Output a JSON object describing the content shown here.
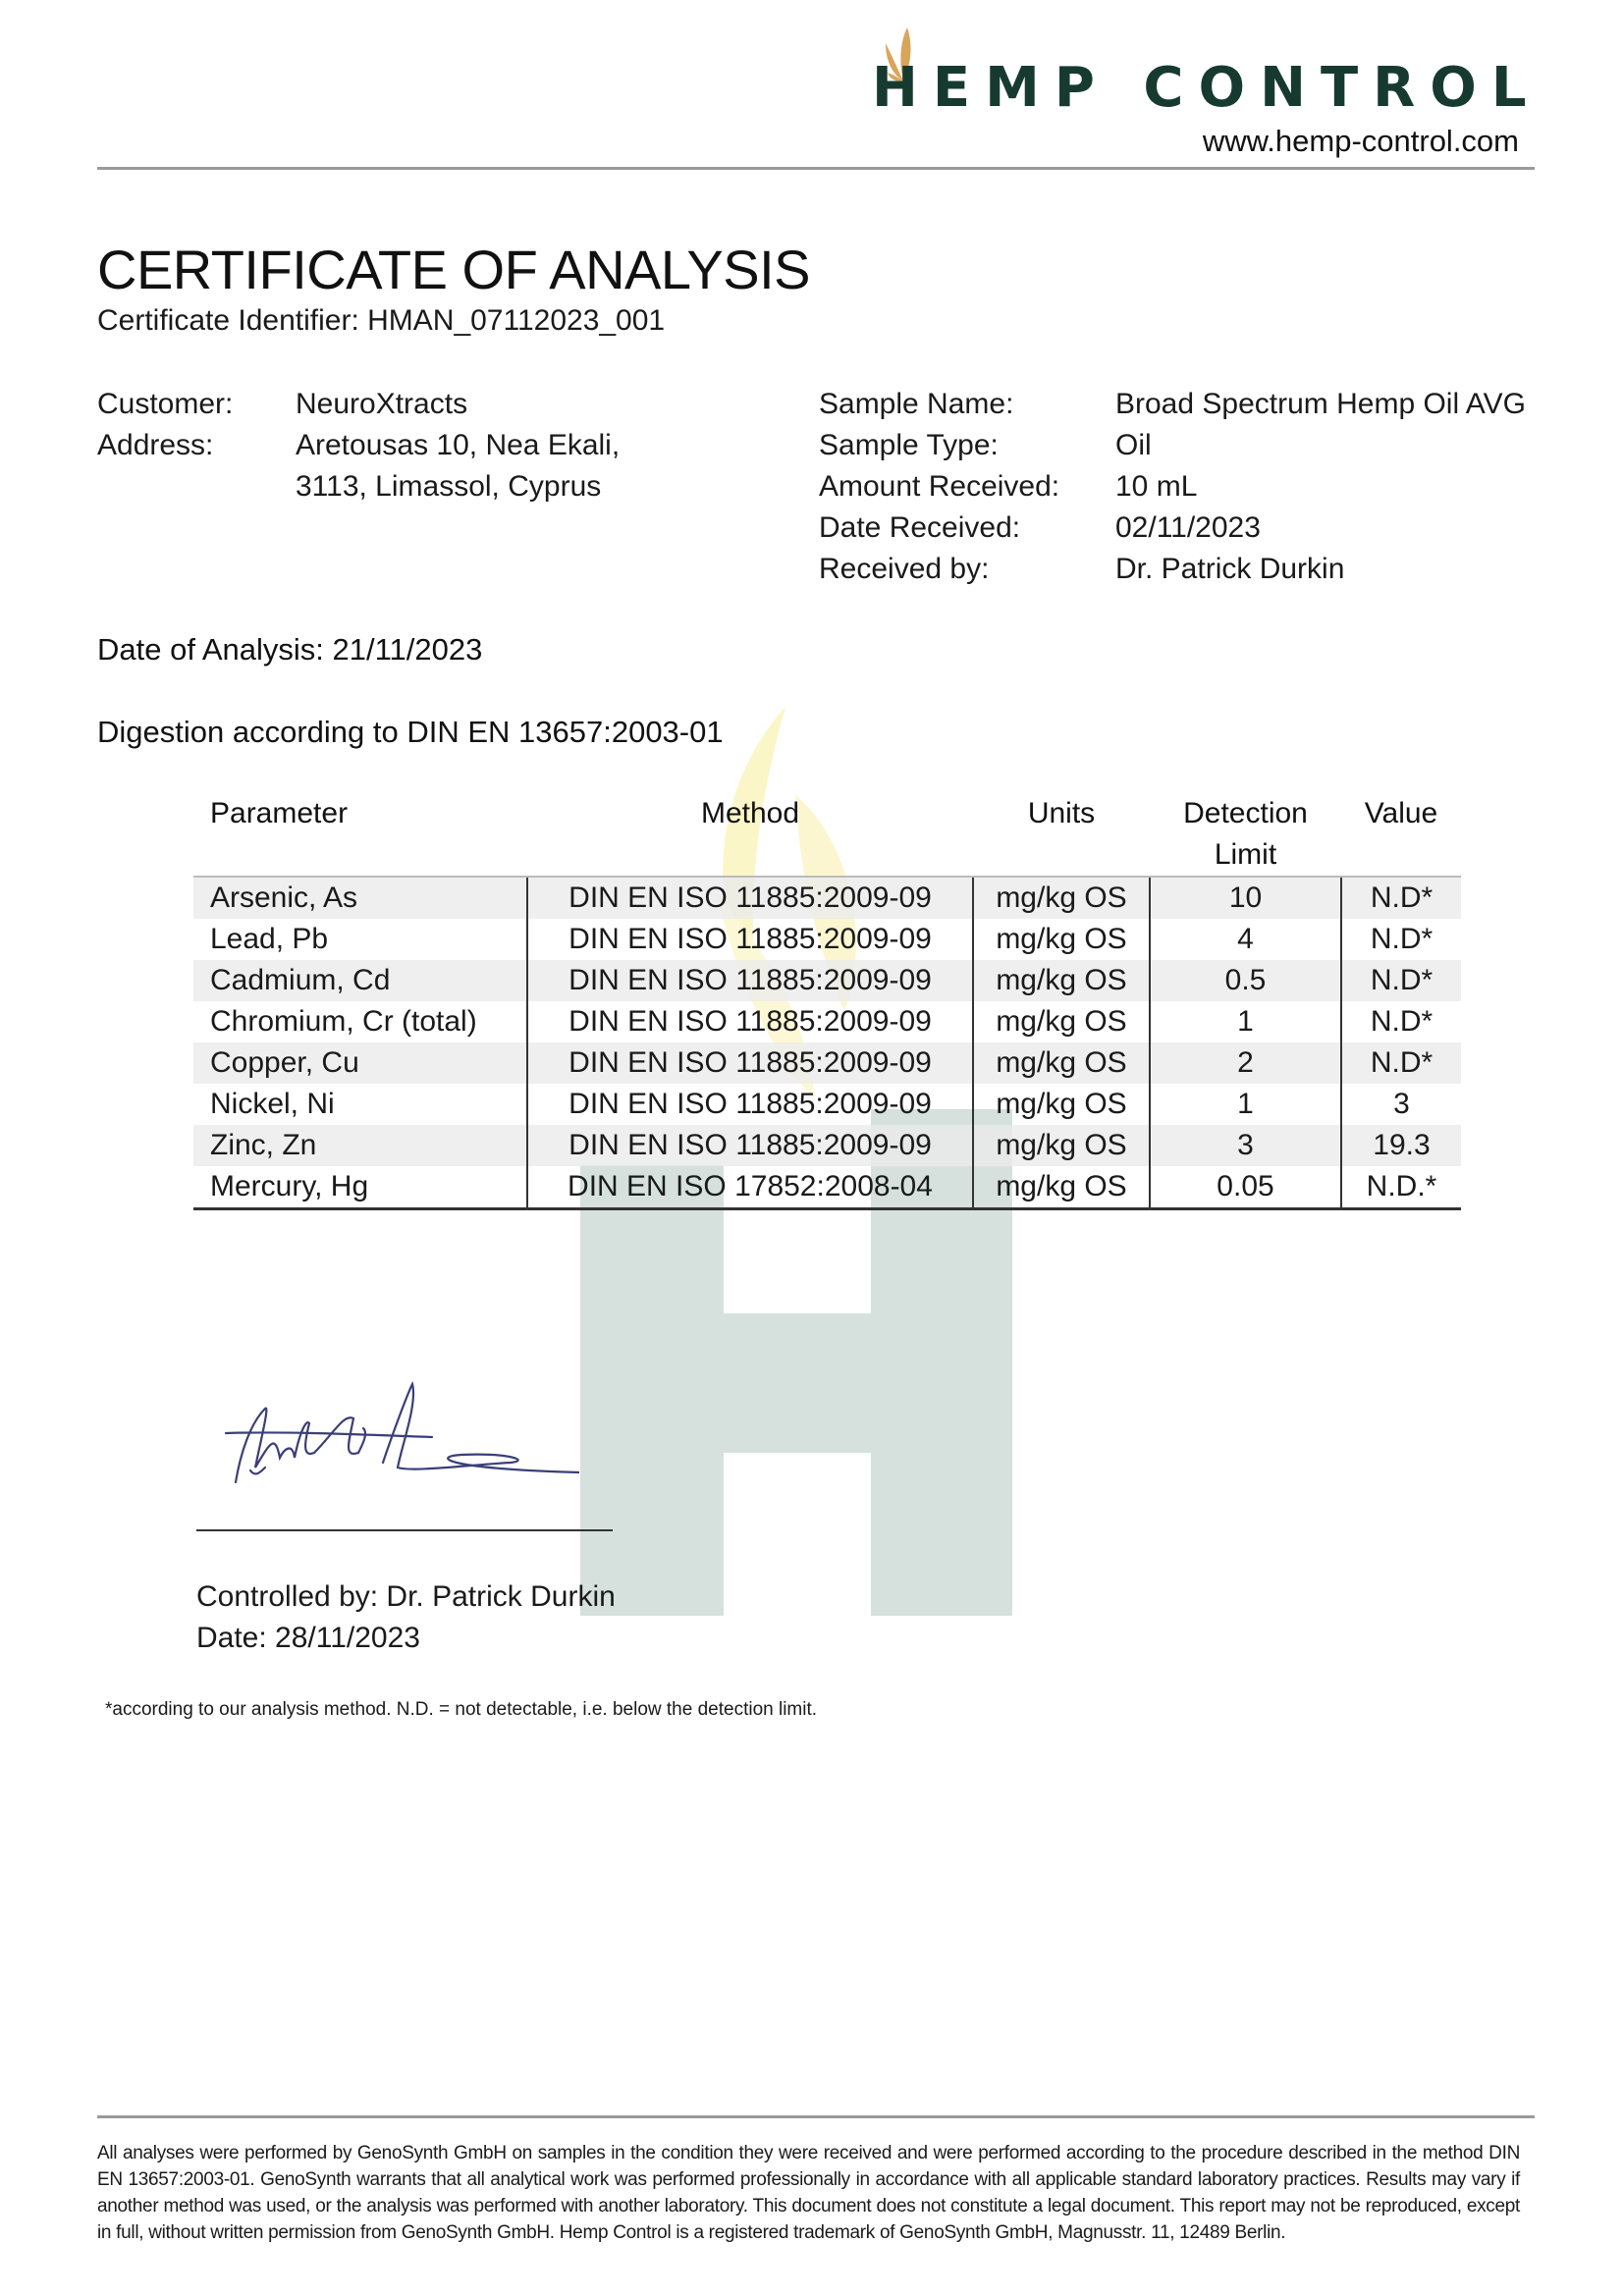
{
  "header": {
    "logo_text": "HEMP CONTROL",
    "website": "www.hemp-control.com",
    "brand_color": "#173a30",
    "leaf_color": "#d9a55a"
  },
  "title": "CERTIFICATE OF ANALYSIS",
  "certificate_identifier": "Certificate Identifier: HMAN_07112023_001",
  "customer": {
    "customer_label": "Customer:",
    "customer_value": "NeuroXtracts",
    "address_label": "Address:",
    "address_line1": "Aretousas 10, Nea Ekali,",
    "address_line2": "3113, Limassol, Cyprus"
  },
  "sample": {
    "name_label": "Sample Name:",
    "name_value": "Broad Spectrum Hemp Oil AVG",
    "type_label": "Sample Type:",
    "type_value": "Oil",
    "amount_label": "Amount Received:",
    "amount_value": "10 mL",
    "date_label": "Date Received:",
    "date_value": "02/11/2023",
    "by_label": "Received by:",
    "by_value": "Dr. Patrick Durkin"
  },
  "date_of_analysis": "Date of Analysis: 21/11/2023",
  "digestion": "Digestion according to DIN EN 13657:2003-01",
  "table": {
    "headers": [
      "Parameter",
      "Method",
      "Units",
      "Detection Limit",
      "Value"
    ],
    "rows": [
      [
        "Arsenic, As",
        "DIN EN ISO 11885:2009-09",
        "mg/kg OS",
        "10",
        "N.D*"
      ],
      [
        "Lead, Pb",
        "DIN EN ISO 11885:2009-09",
        "mg/kg OS",
        "4",
        "N.D*"
      ],
      [
        "Cadmium, Cd",
        "DIN EN ISO 11885:2009-09",
        "mg/kg OS",
        "0.5",
        "N.D*"
      ],
      [
        "Chromium, Cr (total)",
        "DIN EN ISO 11885:2009-09",
        "mg/kg OS",
        "1",
        "N.D*"
      ],
      [
        "Copper, Cu",
        "DIN EN ISO 11885:2009-09",
        "mg/kg OS",
        "2",
        "N.D*"
      ],
      [
        "Nickel, Ni",
        "DIN EN ISO 11885:2009-09",
        "mg/kg OS",
        "1",
        "3"
      ],
      [
        "Zinc, Zn",
        "DIN EN ISO 11885:2009-09",
        "mg/kg OS",
        "3",
        "19.3"
      ],
      [
        "Mercury, Hg",
        "DIN EN ISO 17852:2008-04",
        "mg/kg OS",
        "0.05",
        "N.D.*"
      ]
    ]
  },
  "signature": {
    "controlled_by": "Controlled by: Dr. Patrick Durkin",
    "date": "Date: 28/11/2023"
  },
  "footnote": "*according to our analysis method. N.D. = not detectable, i.e. below the detection limit.",
  "footer": "All analyses were performed by GenoSynth GmbH on samples in the condition they were received and were performed according to the procedure described in the method DIN EN 13657:2003-01. GenoSynth warrants that all analytical work was performed professionally in accordance with all applicable standard laboratory practices. Results may vary if another method was used, or the analysis was performed with another laboratory. This document does not constitute a legal document. This report may not be reproduced, except in full, without written permission from GenoSynth GmbH. Hemp Control is a registered trademark of GenoSynth GmbH, Magnusstr. 11, 12489 Berlin."
}
